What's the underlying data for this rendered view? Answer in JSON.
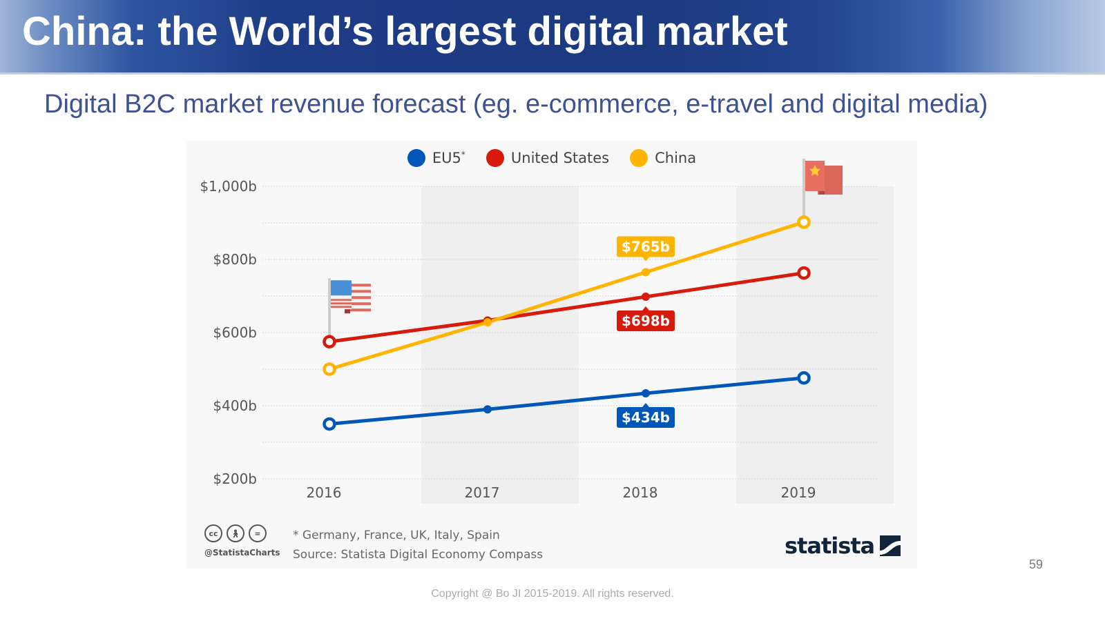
{
  "slide": {
    "title": "China: the World’s largest digital market",
    "subtitle": "Digital B2C market revenue forecast (eg. e-commerce, e-travel and digital media)",
    "page_number": "59",
    "copyright": "Copyright @ Bo JI 2015-2019. All rights reserved."
  },
  "legend": [
    {
      "label": "EU5",
      "sup": "*",
      "color": "#0057b8"
    },
    {
      "label": "United States",
      "sup": "",
      "color": "#d61a0c"
    },
    {
      "label": "China",
      "sup": "",
      "color": "#ffb400"
    }
  ],
  "footer": {
    "note": "* Germany, France, UK, Italy, Spain",
    "source": "Source: Statista Digital Economy Compass",
    "handle": "@StatistaCharts",
    "logo_text": "statista",
    "cc_icons": [
      "cc-icon",
      "by-icon",
      "nd-icon"
    ]
  },
  "chart_data": {
    "type": "line",
    "title": "Digital B2C market revenue forecast (eg. e-commerce, e-travel and digital media)",
    "xlabel": "",
    "ylabel": "",
    "categories": [
      "2016",
      "2017",
      "2018",
      "2019"
    ],
    "y_ticks": [
      200,
      400,
      600,
      800,
      1000
    ],
    "y_tick_labels": [
      "$200b",
      "$400b",
      "$600b",
      "$800b",
      "$1,000b"
    ],
    "ylim": [
      200,
      1000
    ],
    "grid": true,
    "legend_position": "top-center",
    "series": [
      {
        "name": "EU5*",
        "color": "#0057b8",
        "values": [
          350,
          390,
          434,
          476
        ]
      },
      {
        "name": "United States",
        "color": "#d61a0c",
        "values": [
          575,
          633,
          698,
          763
        ]
      },
      {
        "name": "China",
        "color": "#ffb400",
        "values": [
          500,
          628,
          765,
          902
        ]
      }
    ],
    "annotations": [
      {
        "series": "China",
        "category": "2018",
        "text": "$765b",
        "position": "above"
      },
      {
        "series": "United States",
        "category": "2018",
        "text": "$698b",
        "position": "below"
      },
      {
        "series": "EU5*",
        "category": "2018",
        "text": "$434b",
        "position": "below"
      }
    ],
    "flag_markers": [
      {
        "series": "United States",
        "category": "2016",
        "icon": "us-flag-icon"
      },
      {
        "series": "China",
        "category": "2019",
        "icon": "china-flag-icon"
      }
    ]
  }
}
